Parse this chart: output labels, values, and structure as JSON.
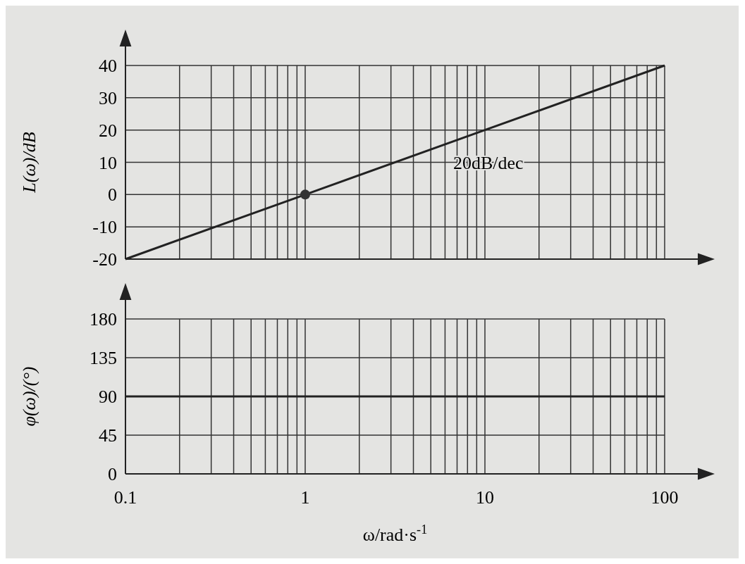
{
  "chart_data": [
    {
      "type": "line",
      "ylabel": "L(ω)/dB",
      "x": [
        0.1,
        1,
        10,
        100
      ],
      "log": "x",
      "xlim": [
        0.1,
        100
      ],
      "ylim": [
        -20,
        40
      ],
      "yticks": [
        -20,
        -10,
        0,
        10,
        20,
        30,
        40
      ],
      "xticks": [
        0.1,
        {
          "value": 0.2,
          "label": null
        },
        {
          "value": 0.3,
          "label": null
        },
        {
          "value": 0.4,
          "label": null
        },
        {
          "value": 0.5,
          "label": null
        },
        {
          "value": 0.6,
          "label": null
        },
        {
          "value": 0.7,
          "label": null
        },
        {
          "value": 0.8,
          "label": null
        },
        {
          "value": 0.9,
          "label": null
        },
        1,
        {
          "value": 2,
          "label": null
        },
        {
          "value": 3,
          "label": null
        },
        {
          "value": 4,
          "label": null
        },
        {
          "value": 5,
          "label": null
        },
        {
          "value": 6,
          "label": null
        },
        {
          "value": 7,
          "label": null
        },
        {
          "value": 8,
          "label": null
        },
        {
          "value": 9,
          "label": null
        },
        10,
        {
          "value": 20,
          "label": null
        },
        {
          "value": 30,
          "label": null
        },
        {
          "value": 40,
          "label": null
        },
        {
          "value": 50,
          "label": null
        },
        {
          "value": 60,
          "label": null
        },
        {
          "value": 70,
          "label": null
        },
        {
          "value": 80,
          "label": null
        },
        {
          "value": 90,
          "label": null
        },
        100
      ],
      "grid": true,
      "tick_labels": "y",
      "line_style": "solid",
      "series": [
        {
          "type": "line",
          "color": "#222222",
          "values": [
            -20,
            0,
            20,
            40
          ]
        },
        {
          "type": "scatter",
          "x": [
            1
          ],
          "values": [
            0
          ],
          "color": "#333333",
          "marker": "circle"
        }
      ],
      "annotations": [
        {
          "text": "20dB/dec",
          "x": 10,
          "y": 20
        }
      ]
    },
    {
      "type": "line",
      "ylabel": "φ(ω)/(°)",
      "xlabel": "ω/rad·s$^{-1}$",
      "x": [
        0.1,
        100
      ],
      "log": "x",
      "xlim": [
        0.1,
        100
      ],
      "ylim": [
        0,
        180
      ],
      "yticks": [
        0,
        45,
        90,
        135,
        180
      ],
      "xticks": [
        0.1,
        {
          "value": 0.2,
          "label": null
        },
        {
          "value": 0.3,
          "label": null
        },
        {
          "value": 0.4,
          "label": null
        },
        {
          "value": 0.5,
          "label": null
        },
        {
          "value": 0.6,
          "label": null
        },
        {
          "value": 0.7,
          "label": null
        },
        {
          "value": 0.8,
          "label": null
        },
        {
          "value": 0.9,
          "label": null
        },
        1,
        {
          "value": 2,
          "label": null
        },
        {
          "value": 3,
          "label": null
        },
        {
          "value": 4,
          "label": null
        },
        {
          "value": 5,
          "label": null
        },
        {
          "value": 6,
          "label": null
        },
        {
          "value": 7,
          "label": null
        },
        {
          "value": 8,
          "label": null
        },
        {
          "value": 9,
          "label": null
        },
        10,
        {
          "value": 20,
          "label": null
        },
        {
          "value": 30,
          "label": null
        },
        {
          "value": 40,
          "label": null
        },
        {
          "value": 50,
          "label": null
        },
        {
          "value": 60,
          "label": null
        },
        {
          "value": 70,
          "label": null
        },
        {
          "value": 80,
          "label": null
        },
        {
          "value": 90,
          "label": null
        },
        100
      ],
      "grid": true,
      "line_style": "solid",
      "series": [
        {
          "type": "line",
          "color": "#222222",
          "values": [
            90,
            90
          ]
        }
      ]
    }
  ]
}
